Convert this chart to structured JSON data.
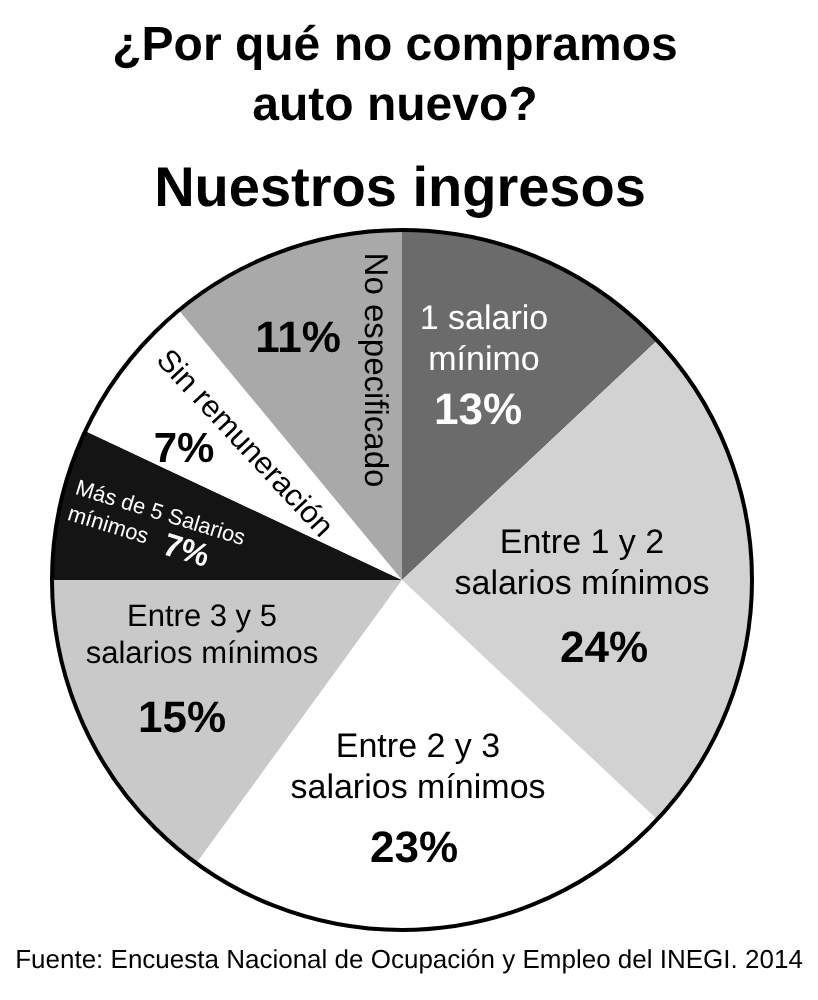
{
  "chart_data": {
    "type": "pie",
    "title": "¿Por qué no compramos auto nuevo?",
    "subtitle": "Nuestros ingresos",
    "categories": [
      "1 salario mínimo",
      "Entre 1 y 2 salarios mínimos",
      "Entre 2 y 3 salarios mínimos",
      "Entre 3 y 5 salarios mínimos",
      "Más de 5 Salarios mínimos",
      "Sin remuneración",
      "No especificado"
    ],
    "values": [
      13,
      24,
      23,
      15,
      7,
      7,
      11
    ],
    "value_labels": [
      "13%",
      "24%",
      "23%",
      "15%",
      "7%",
      "7%",
      "11%"
    ],
    "colors": [
      "#6b6b6b",
      "#d2d2d2",
      "#ffffff",
      "#c9c9c9",
      "#141414",
      "#ffffff",
      "#a9a9a9"
    ],
    "annotations": [
      "Fuente: Encuesta Nacional de Ocupación y Empleo del INEGI. 2014"
    ]
  }
}
